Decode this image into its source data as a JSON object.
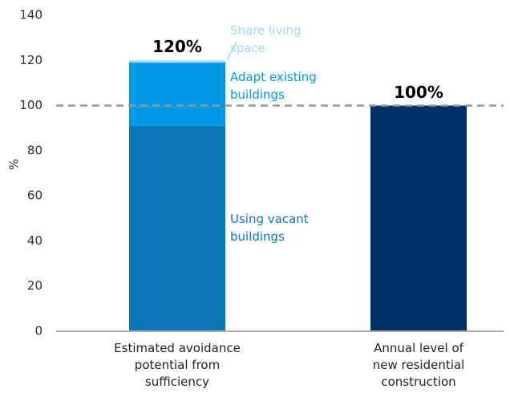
{
  "chart_data": {
    "type": "stacked_bar",
    "categories": [
      "Estimated avoidance\npotential from\nsufficiency",
      "Annual level of\nnew residential\nconstruction"
    ],
    "series": [
      {
        "name": "Using vacant\nbuildings",
        "color": "#0b77b8",
        "values": [
          91,
          null
        ]
      },
      {
        "name": "Adapt existing\nbuildings",
        "color": "#0099e8",
        "values": [
          28,
          null
        ]
      },
      {
        "name": "Share living\nspace",
        "color": "#a3dbf5",
        "values": [
          1,
          null
        ]
      },
      {
        "color": "#00306a",
        "values": [
          null,
          100
        ]
      }
    ],
    "totals": [
      120,
      100
    ],
    "total_labels": [
      "120%",
      "100%"
    ],
    "reference_line": 100,
    "ylabel": "%",
    "ylim": [
      0,
      140
    ],
    "yticks": [
      0,
      20,
      40,
      60,
      80,
      100,
      120,
      140
    ],
    "grid": false
  }
}
